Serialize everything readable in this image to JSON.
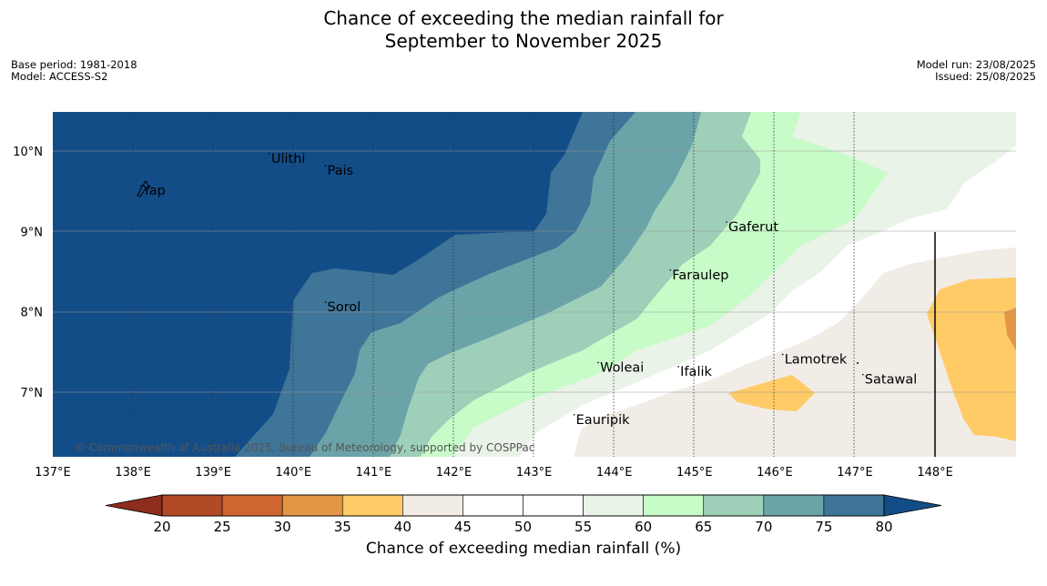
{
  "header": {
    "title_line1": "Chance of exceeding the median rainfall for",
    "title_line2": "September to November 2025",
    "base_period": "Base period: 1981-2018",
    "model": "Model: ACCESS-S2",
    "model_run": "Model run: 23/08/2025",
    "issued": "Issued: 25/08/2025"
  },
  "map": {
    "lon_labels": [
      "137°E",
      "138°E",
      "139°E",
      "140°E",
      "141°E",
      "142°E",
      "143°E",
      "144°E",
      "145°E",
      "146°E",
      "147°E",
      "148°E"
    ],
    "lat_labels": [
      "10°N",
      "9°N",
      "8°N",
      "7°N"
    ],
    "copyright": "© Commonwealth of Australia 2025, Bureau of Meteorology, supported by COSPPac",
    "places": [
      {
        "name": "Yap",
        "lon": 138.1,
        "lat": 9.5
      },
      {
        "name": "Ulithi",
        "lon": 139.7,
        "lat": 9.9
      },
      {
        "name": "Pais",
        "lon": 140.4,
        "lat": 9.75
      },
      {
        "name": "Sorol",
        "lon": 140.4,
        "lat": 8.05
      },
      {
        "name": "Gaferut",
        "lon": 145.4,
        "lat": 9.05
      },
      {
        "name": "Faraulep",
        "lon": 144.7,
        "lat": 8.45
      },
      {
        "name": "Woleai",
        "lon": 143.8,
        "lat": 7.3
      },
      {
        "name": "Ifalik",
        "lon": 144.8,
        "lat": 7.25
      },
      {
        "name": "Lamotrek",
        "lon": 146.1,
        "lat": 7.4
      },
      {
        "name": "Satawal",
        "lon": 147.1,
        "lat": 7.15
      },
      {
        "name": "Eauripik",
        "lon": 143.5,
        "lat": 6.65
      }
    ]
  },
  "colorbar": {
    "title": "Chance of exceeding median rainfall (%)",
    "ticks": [
      "20",
      "25",
      "30",
      "35",
      "40",
      "45",
      "50",
      "55",
      "60",
      "65",
      "70",
      "75",
      "80"
    ],
    "colors": {
      "below20": "#8e2d1c",
      "20_25": "#b24a26",
      "25_30": "#cf6531",
      "30_35": "#e49647",
      "35_40": "#fecb67",
      "40_45": "#f1ece6",
      "45_50": "#ffffff",
      "50_55": "#ffffff",
      "55_60": "#eaf3e8",
      "60_65": "#c7fcc8",
      "65_70": "#9ecfb9",
      "70_75": "#6ba4a8",
      "75_80": "#3e7598",
      "above80": "#134d88"
    }
  }
}
